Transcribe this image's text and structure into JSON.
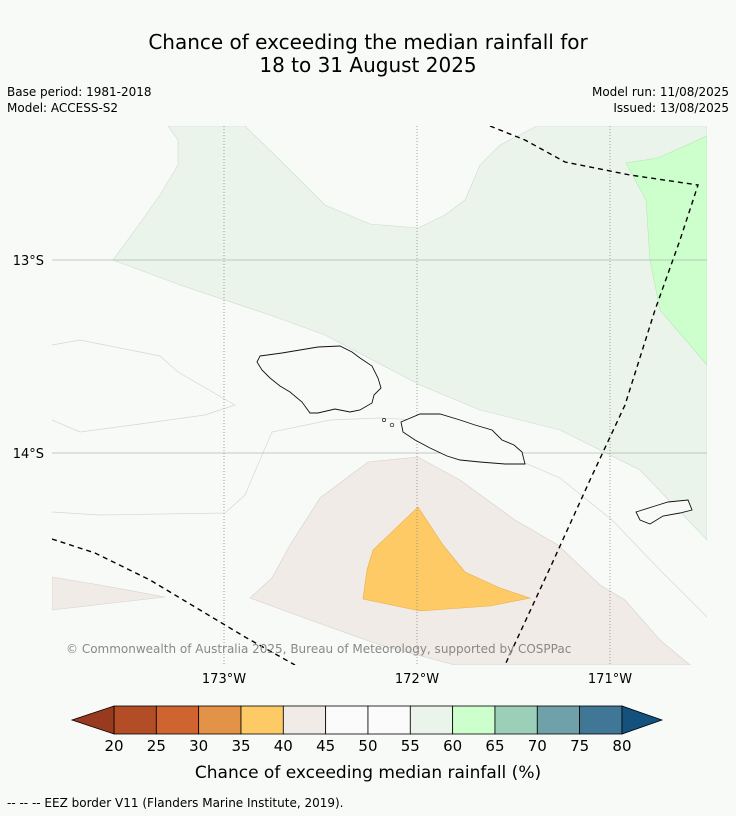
{
  "title": {
    "line1": "Chance of exceeding the median rainfall for",
    "line2": "18 to 31 August 2025"
  },
  "meta": {
    "base_period": "Base period: 1981-2018",
    "model": "Model: ACCESS-S2",
    "model_run": "Model run: 11/08/2025",
    "issued": "Issued: 13/08/2025"
  },
  "map": {
    "lat_labels": [
      "13°S",
      "14°S"
    ],
    "lon_labels": [
      "173°W",
      "172°W",
      "171°W"
    ],
    "copyright": "© Commonwealth of Australia 2025, Bureau of Meteorology, supported by COSPPac",
    "region_colors": {
      "55-60": "#eaf4ea",
      "60-65": "#ccffcc",
      "40-45": "#f0ebe6",
      "35-40": "#fdca65"
    }
  },
  "colorbar": {
    "ticks": [
      "20",
      "25",
      "30",
      "35",
      "40",
      "45",
      "50",
      "55",
      "60",
      "65",
      "70",
      "75",
      "80"
    ],
    "colors": [
      "#b24d25",
      "#cf6431",
      "#e39347",
      "#fdca65",
      "#f0ebe6",
      "#fbfbfb",
      "#fbfbfb",
      "#eaf4ea",
      "#ccffcc",
      "#9ccfb8",
      "#6fa2a8",
      "#417796"
    ],
    "under_color": "#983a20",
    "over_color": "#14517f",
    "label": "Chance of exceeding median rainfall (%)"
  },
  "footnote": "--  --  -- EEZ border V11 (Flanders Marine Institute, 2019)."
}
